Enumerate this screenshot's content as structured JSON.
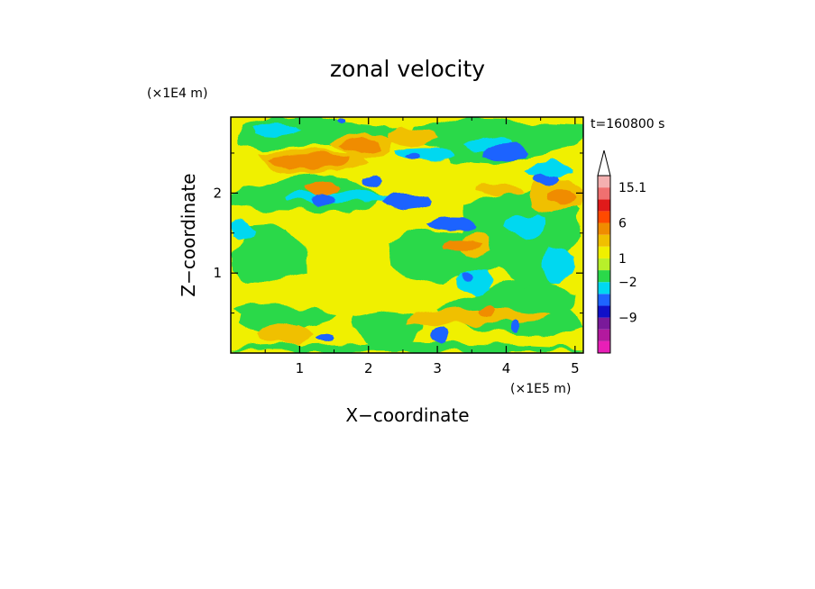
{
  "chart_data": {
    "type": "heatmap",
    "title": "zonal velocity",
    "xlabel": "X−coordinate",
    "ylabel": "Z−coordinate",
    "x_unit": "(×1E5 m)",
    "y_unit": "(×1E4 m)",
    "time_label": "t=160800 s",
    "xlim": [
      0,
      5.12
    ],
    "ylim": [
      0,
      2.95
    ],
    "x_ticks": [
      1,
      2,
      3,
      4,
      5
    ],
    "y_ticks": [
      1,
      2
    ],
    "colorbar": {
      "levels": [
        -15,
        -12,
        -9,
        -6,
        -4,
        -2,
        0,
        1,
        2,
        4,
        6,
        9,
        12,
        15.1
      ],
      "colors": [
        "#e81fb7",
        "#b3199e",
        "#7a1a9a",
        "#1010c8",
        "#1e64ff",
        "#00d8f0",
        "#2ad94a",
        "#b8f02a",
        "#f0f000",
        "#f0c000",
        "#f08c00",
        "#ff4a00",
        "#e01a1a",
        "#f07070",
        "#f4b0b0"
      ],
      "labels": [
        {
          "value": 15.1,
          "text": "15.1"
        },
        {
          "value": 6,
          "text": "6"
        },
        {
          "value": 1,
          "text": "1"
        },
        {
          "value": -2,
          "text": "−2"
        },
        {
          "value": -9,
          "text": "−9"
        }
      ],
      "extend_max": true
    },
    "base_color": "#f0f000",
    "features": [
      {
        "x": [
          0.0,
          5.12
        ],
        "y": [
          0.0,
          0.12
        ],
        "color": "#2ad94a",
        "amp": 0.6
      },
      {
        "x": [
          0.0,
          1.4
        ],
        "y": [
          0.28,
          0.62
        ],
        "color": "#2ad94a",
        "amp": 0.8
      },
      {
        "x": [
          1.8,
          2.8
        ],
        "y": [
          0.05,
          0.55
        ],
        "color": "#2ad94a",
        "amp": 0.7
      },
      {
        "x": [
          3.2,
          5.12
        ],
        "y": [
          0.2,
          0.9
        ],
        "color": "#2ad94a",
        "amp": 0.8
      },
      {
        "x": [
          0.0,
          1.1
        ],
        "y": [
          0.85,
          1.6
        ],
        "color": "#2ad94a",
        "amp": 0.8
      },
      {
        "x": [
          2.2,
          4.0
        ],
        "y": [
          0.9,
          1.55
        ],
        "color": "#2ad94a",
        "amp": 0.8
      },
      {
        "x": [
          3.4,
          5.12
        ],
        "y": [
          0.9,
          2.1
        ],
        "color": "#2ad94a",
        "amp": 0.9
      },
      {
        "x": [
          0.0,
          2.2
        ],
        "y": [
          1.75,
          2.2
        ],
        "color": "#2ad94a",
        "amp": 0.8
      },
      {
        "x": [
          0.0,
          2.4
        ],
        "y": [
          2.55,
          2.95
        ],
        "color": "#2ad94a",
        "amp": 0.8
      },
      {
        "x": [
          2.6,
          5.12
        ],
        "y": [
          2.4,
          2.95
        ],
        "color": "#2ad94a",
        "amp": 0.9
      },
      {
        "x": [
          4.2,
          5.12
        ],
        "y": [
          1.5,
          1.9
        ],
        "color": "#2ad94a",
        "amp": 0.7
      },
      {
        "x": [
          0.8,
          2.3
        ],
        "y": [
          1.88,
          2.02
        ],
        "color": "#00d8f0",
        "amp": 0.5
      },
      {
        "x": [
          0.3,
          1.0
        ],
        "y": [
          2.72,
          2.86
        ],
        "color": "#00d8f0",
        "amp": 0.5
      },
      {
        "x": [
          2.4,
          3.2
        ],
        "y": [
          2.4,
          2.58
        ],
        "color": "#00d8f0",
        "amp": 0.5
      },
      {
        "x": [
          3.4,
          4.1
        ],
        "y": [
          2.5,
          2.7
        ],
        "color": "#00d8f0",
        "amp": 0.5
      },
      {
        "x": [
          4.3,
          5.0
        ],
        "y": [
          2.2,
          2.4
        ],
        "color": "#00d8f0",
        "amp": 0.5
      },
      {
        "x": [
          4.5,
          5.0
        ],
        "y": [
          0.9,
          1.3
        ],
        "color": "#00d8f0",
        "amp": 0.6
      },
      {
        "x": [
          4.0,
          4.6
        ],
        "y": [
          1.45,
          1.75
        ],
        "color": "#00d8f0",
        "amp": 0.6
      },
      {
        "x": [
          3.3,
          3.8
        ],
        "y": [
          0.75,
          1.05
        ],
        "color": "#00d8f0",
        "amp": 0.6
      },
      {
        "x": [
          0.0,
          0.35
        ],
        "y": [
          1.4,
          1.65
        ],
        "color": "#00d8f0",
        "amp": 0.5
      },
      {
        "x": [
          0.4,
          1.9
        ],
        "y": [
          2.25,
          2.55
        ],
        "color": "#f0c000",
        "amp": 0.7
      },
      {
        "x": [
          1.5,
          2.4
        ],
        "y": [
          2.45,
          2.75
        ],
        "color": "#f0c000",
        "amp": 0.6
      },
      {
        "x": [
          3.3,
          3.8
        ],
        "y": [
          1.2,
          1.5
        ],
        "color": "#f0c000",
        "amp": 0.6
      },
      {
        "x": [
          4.3,
          5.12
        ],
        "y": [
          1.75,
          2.2
        ],
        "color": "#f0c000",
        "amp": 0.6
      },
      {
        "x": [
          2.3,
          3.0
        ],
        "y": [
          2.6,
          2.8
        ],
        "color": "#f0c000",
        "amp": 0.5
      },
      {
        "x": [
          0.4,
          1.2
        ],
        "y": [
          0.1,
          0.4
        ],
        "color": "#f0c000",
        "amp": 0.6
      },
      {
        "x": [
          2.5,
          4.6
        ],
        "y": [
          0.35,
          0.55
        ],
        "color": "#f0c000",
        "amp": 0.6
      },
      {
        "x": [
          3.5,
          4.2
        ],
        "y": [
          1.95,
          2.1
        ],
        "color": "#f0c000",
        "amp": 0.5
      },
      {
        "x": [
          0.6,
          1.7
        ],
        "y": [
          2.3,
          2.5
        ],
        "color": "#f08c00",
        "amp": 0.5
      },
      {
        "x": [
          1.6,
          2.2
        ],
        "y": [
          2.5,
          2.68
        ],
        "color": "#f08c00",
        "amp": 0.4
      },
      {
        "x": [
          3.05,
          3.65
        ],
        "y": [
          1.28,
          1.42
        ],
        "color": "#f08c00",
        "amp": 0.4
      },
      {
        "x": [
          4.6,
          5.0
        ],
        "y": [
          1.85,
          2.05
        ],
        "color": "#f08c00",
        "amp": 0.4
      },
      {
        "x": [
          3.55,
          3.85
        ],
        "y": [
          0.45,
          0.6
        ],
        "color": "#f08c00",
        "amp": 0.4
      },
      {
        "x": [
          1.1,
          1.6
        ],
        "y": [
          2.0,
          2.15
        ],
        "color": "#f08c00",
        "amp": 0.4
      },
      {
        "x": [
          1.15,
          1.55
        ],
        "y": [
          1.86,
          2.02
        ],
        "color": "#1e64ff",
        "amp": 0.3
      },
      {
        "x": [
          2.2,
          2.9
        ],
        "y": [
          1.8,
          2.0
        ],
        "color": "#1e64ff",
        "amp": 0.3
      },
      {
        "x": [
          2.85,
          3.55
        ],
        "y": [
          1.52,
          1.68
        ],
        "color": "#1e64ff",
        "amp": 0.3
      },
      {
        "x": [
          3.65,
          4.35
        ],
        "y": [
          2.4,
          2.62
        ],
        "color": "#1e64ff",
        "amp": 0.3
      },
      {
        "x": [
          1.9,
          2.2
        ],
        "y": [
          2.08,
          2.22
        ],
        "color": "#1e64ff",
        "amp": 0.3
      },
      {
        "x": [
          4.4,
          4.75
        ],
        "y": [
          2.12,
          2.25
        ],
        "color": "#1e64ff",
        "amp": 0.3
      },
      {
        "x": [
          2.55,
          2.75
        ],
        "y": [
          2.4,
          2.5
        ],
        "color": "#1e64ff",
        "amp": 0.2
      },
      {
        "x": [
          1.55,
          1.7
        ],
        "y": [
          2.87,
          2.95
        ],
        "color": "#1e64ff",
        "amp": 0.2
      },
      {
        "x": [
          1.2,
          1.5
        ],
        "y": [
          0.15,
          0.25
        ],
        "color": "#1e64ff",
        "amp": 0.2
      },
      {
        "x": [
          2.9,
          3.2
        ],
        "y": [
          0.1,
          0.35
        ],
        "color": "#1e64ff",
        "amp": 0.2
      },
      {
        "x": [
          4.05,
          4.2
        ],
        "y": [
          0.25,
          0.4
        ],
        "color": "#1e64ff",
        "amp": 0.2
      },
      {
        "x": [
          3.35,
          3.5
        ],
        "y": [
          0.9,
          1.0
        ],
        "color": "#1e64ff",
        "amp": 0.2
      }
    ]
  }
}
